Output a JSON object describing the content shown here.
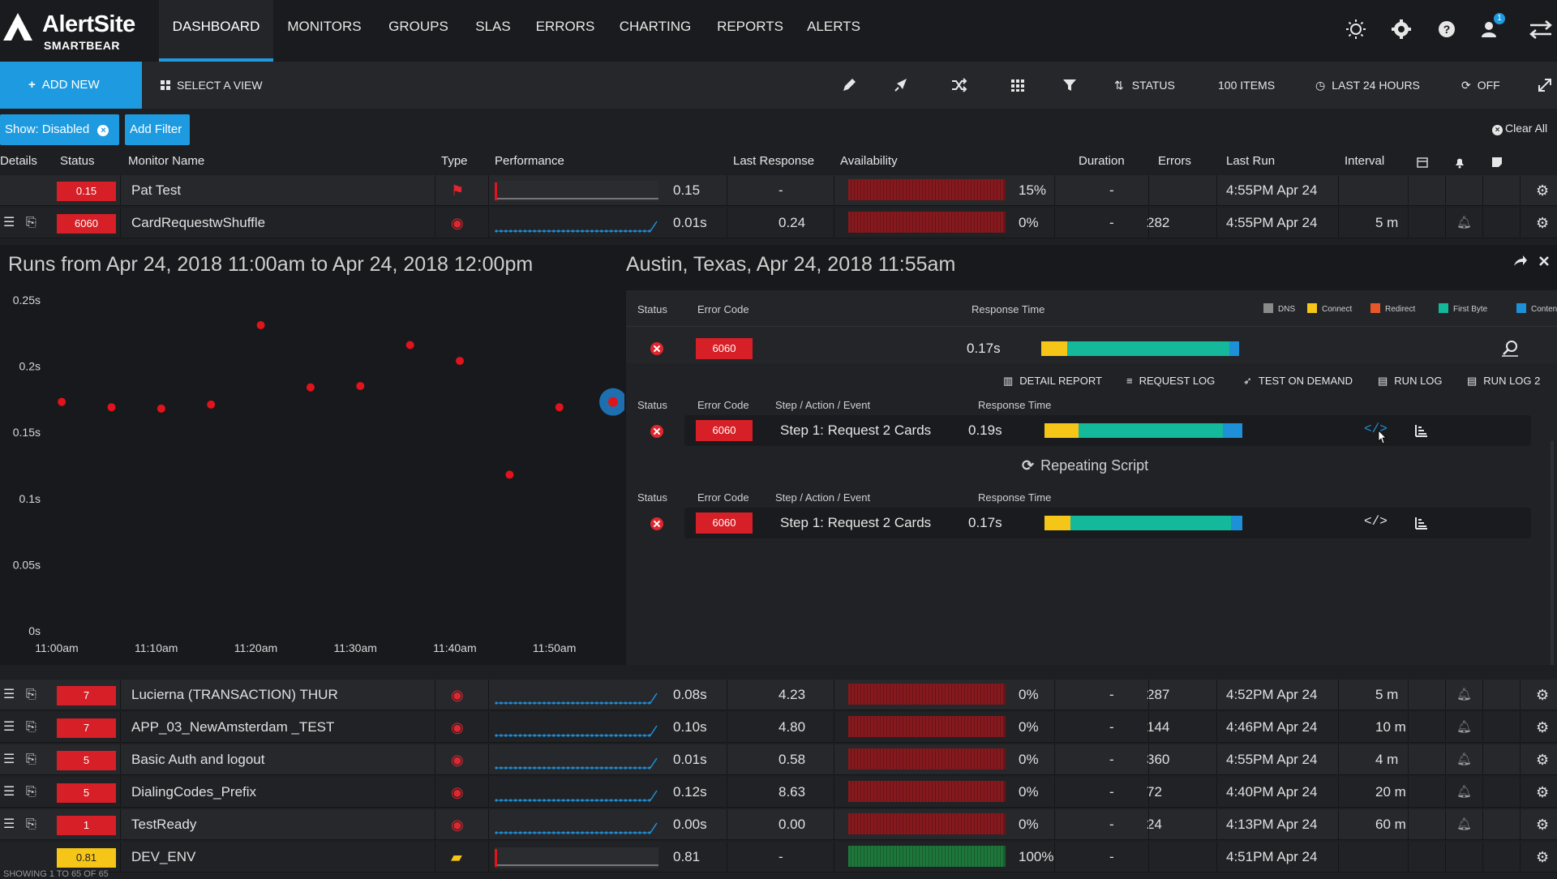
{
  "app": {
    "brand": "AlertSite",
    "sub": "SMARTBEAR"
  },
  "nav": {
    "tabs": [
      "DASHBOARD",
      "MONITORS",
      "GROUPS",
      "SLAS",
      "ERRORS",
      "CHARTING",
      "REPORTS",
      "ALERTS"
    ],
    "active": "DASHBOARD",
    "notification_count": "1"
  },
  "toolbar": {
    "add_new": "ADD NEW",
    "select_view": "SELECT A VIEW",
    "status": "STATUS",
    "items": "100 ITEMS",
    "range": "LAST 24 HOURS",
    "refresh": "OFF"
  },
  "filters": {
    "show_disabled": "Show: Disabled",
    "add_filter": "Add Filter",
    "clear_all": "Clear All"
  },
  "table": {
    "headers": {
      "details": "Details",
      "status": "Status",
      "name": "Monitor Name",
      "type": "Type",
      "performance": "Performance",
      "last_response": "Last Response",
      "availability": "Availability",
      "duration": "Duration",
      "errors": "Errors",
      "last_run": "Last Run",
      "interval": "Interval"
    },
    "top_rows": [
      {
        "status": "0.15",
        "name": "Pat Test",
        "perf": "0.15",
        "last_response": "-",
        "avail": "15%",
        "duration": "-",
        "errors": "",
        "last_run": "4:55PM Apr 24",
        "interval": ""
      },
      {
        "status": "6060",
        "name": "CardRequestwShuffle",
        "perf": "0.01s",
        "last_response": "0.24",
        "avail": "0%",
        "duration": "-",
        "errors": "282",
        "last_run": "4:55PM Apr 24",
        "interval": "5 m"
      }
    ],
    "bottom_rows": [
      {
        "status": "7",
        "name": "Lucierna (TRANSACTION) THUR",
        "perf": "0.08s",
        "last_response": "4.23",
        "avail": "0%",
        "duration": "-",
        "errors": "287",
        "last_run": "4:52PM Apr 24",
        "interval": "5 m"
      },
      {
        "status": "7",
        "name": "APP_03_NewAmsterdam _TEST",
        "perf": "0.10s",
        "last_response": "4.80",
        "avail": "0%",
        "duration": "-",
        "errors": "144",
        "last_run": "4:46PM Apr 24",
        "interval": "10 m"
      },
      {
        "status": "5",
        "name": "Basic Auth and logout",
        "perf": "0.01s",
        "last_response": "0.58",
        "avail": "0%",
        "duration": "-",
        "errors": "360",
        "last_run": "4:55PM Apr 24",
        "interval": "4 m"
      },
      {
        "status": "5",
        "name": "DialingCodes_Prefix",
        "perf": "0.12s",
        "last_response": "8.63",
        "avail": "0%",
        "duration": "-",
        "errors": "72",
        "last_run": "4:40PM Apr 24",
        "interval": "20 m"
      },
      {
        "status": "1",
        "name": "TestReady",
        "perf": "0.00s",
        "last_response": "0.00",
        "avail": "0%",
        "duration": "-",
        "errors": "24",
        "last_run": "4:13PM Apr 24",
        "interval": "60 m"
      },
      {
        "status": "0.81",
        "name": "DEV_ENV",
        "perf": "0.81",
        "last_response": "-",
        "avail": "100%",
        "duration": "-",
        "errors": "",
        "last_run": "4:51PM Apr 24",
        "interval": ""
      }
    ],
    "footer": "SHOWING 1 TO 65 OF 65"
  },
  "runs": {
    "title": "Runs from Apr 24, 2018 11:00am to Apr 24, 2018 12:00pm"
  },
  "chart_data": {
    "type": "scatter",
    "title": "",
    "xlabel": "",
    "ylabel": "",
    "x_ticks": [
      "11:00am",
      "11:10am",
      "11:20am",
      "11:30am",
      "11:40am",
      "11:50am"
    ],
    "y_ticks": [
      "0s",
      "0.05s",
      "0.1s",
      "0.15s",
      "0.2s",
      "0.25s"
    ],
    "ylim": [
      0,
      0.25
    ],
    "xlim_minutes": [
      0,
      55
    ],
    "series": [
      {
        "points": [
          {
            "t": 0.5,
            "v": 0.173
          },
          {
            "t": 5.5,
            "v": 0.169
          },
          {
            "t": 10.5,
            "v": 0.168
          },
          {
            "t": 15.5,
            "v": 0.171
          },
          {
            "t": 20.5,
            "v": 0.231
          },
          {
            "t": 25.5,
            "v": 0.184
          },
          {
            "t": 30.5,
            "v": 0.185
          },
          {
            "t": 35.5,
            "v": 0.216
          },
          {
            "t": 40.5,
            "v": 0.204
          },
          {
            "t": 45.5,
            "v": 0.118
          },
          {
            "t": 50.5,
            "v": 0.169
          },
          {
            "t": 55.0,
            "v": 0.173,
            "selected": true
          }
        ]
      }
    ],
    "colors": {
      "point": "#e0141b",
      "selected": "#1e6fb0"
    }
  },
  "detail": {
    "title": "Austin, Texas, Apr 24, 2018 11:55am",
    "headers": {
      "status": "Status",
      "error_code": "Error Code",
      "response_time": "Response Time",
      "step": "Step / Action / Event"
    },
    "legend": [
      "DNS",
      "Connect",
      "Redirect",
      "First Byte",
      "Content"
    ],
    "legend_colors": [
      "#8a8a8a",
      "#f5c518",
      "#e8572a",
      "#14b89a",
      "#1e90d8"
    ],
    "summary": {
      "code": "6060",
      "time": "0.17s"
    },
    "links": [
      "DETAIL REPORT",
      "REQUEST LOG",
      "TEST ON DEMAND",
      "RUN LOG",
      "RUN LOG 2"
    ],
    "step1": {
      "code": "6060",
      "step": "Step 1: Request 2 Cards",
      "time": "0.19s"
    },
    "repeating": "Repeating Script",
    "step2": {
      "code": "6060",
      "step": "Step 1: Request 2 Cards",
      "time": "0.17s"
    }
  }
}
